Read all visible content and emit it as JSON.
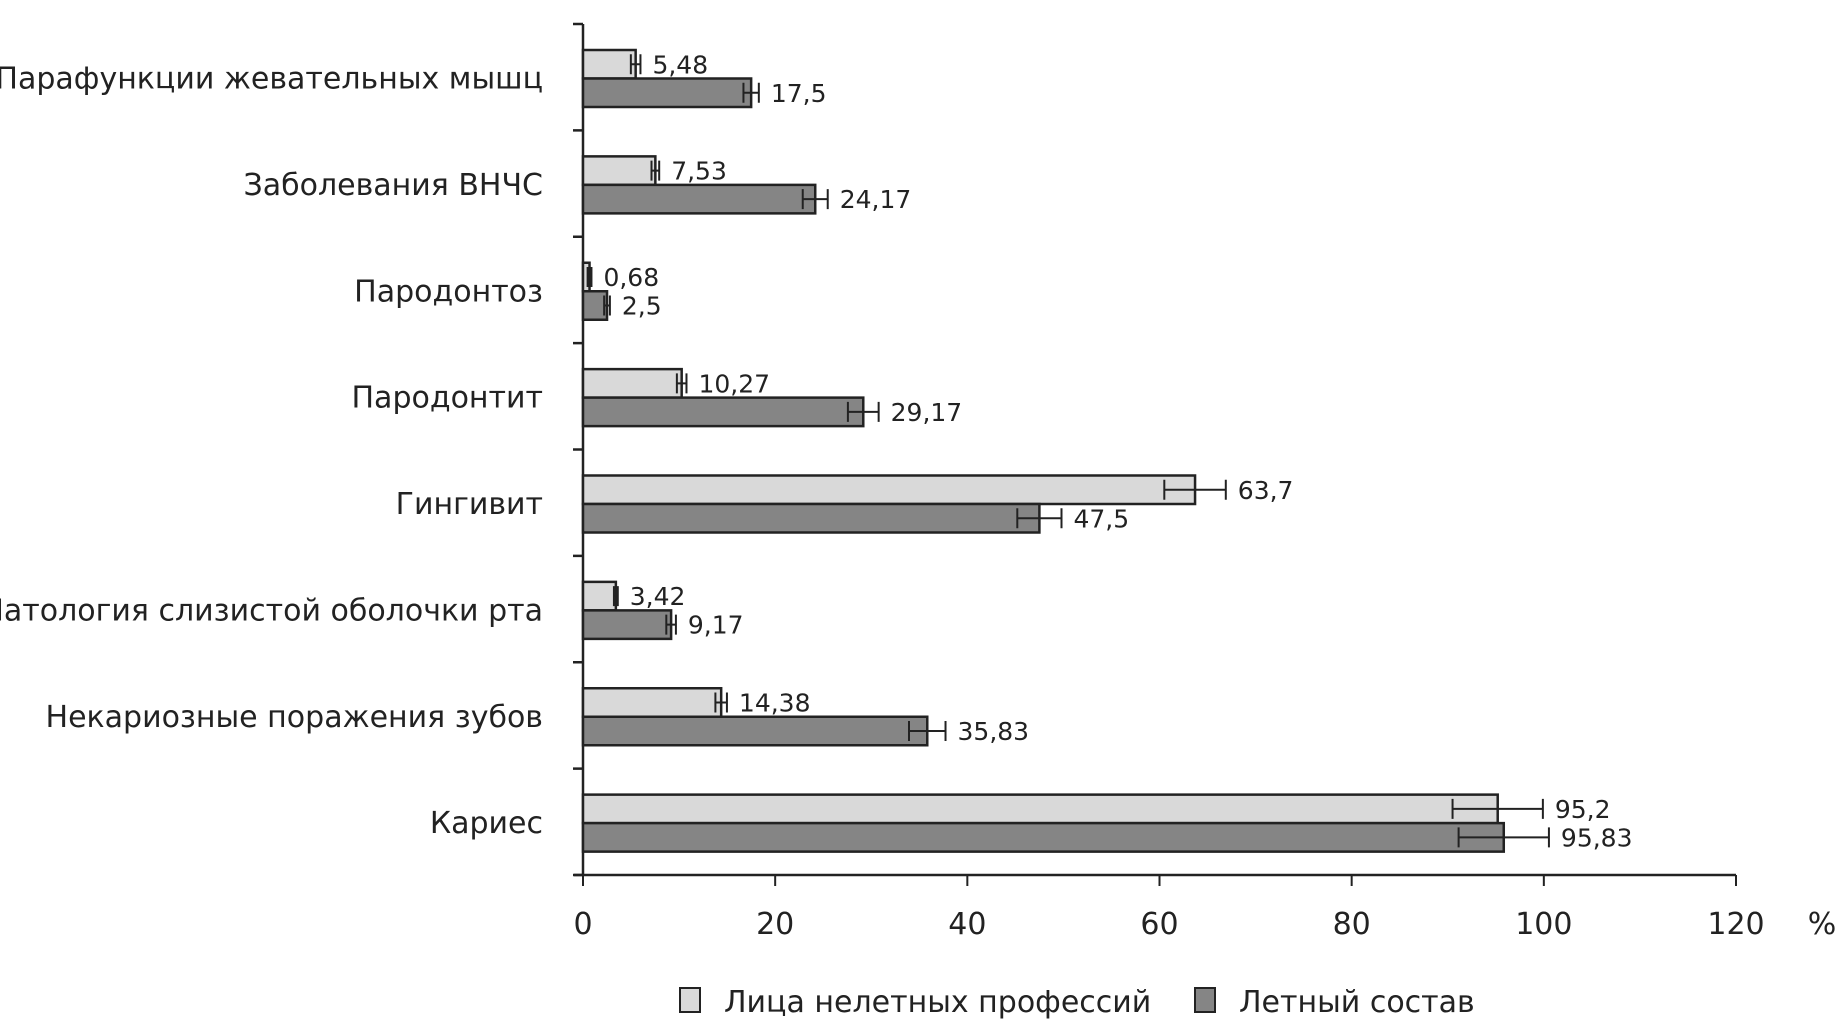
{
  "chart_data": {
    "type": "bar",
    "orientation": "horizontal",
    "title": "",
    "xlabel": "%",
    "ylabel": "",
    "xlim": [
      0,
      120
    ],
    "xticks": [
      0,
      20,
      40,
      60,
      80,
      100,
      120
    ],
    "grid": false,
    "legend_placement": "bottom",
    "categories": [
      "Парафункции жевательных мышц",
      "Заболевания ВНЧС",
      "Пародонтоз",
      "Пародонтит",
      "Гингивит",
      "Патология слизистой оболочки рта",
      "Некариозные поражения зубов",
      "Кариес"
    ],
    "series": [
      {
        "name": "Лица нелетных профессий",
        "color": "#d9d9d9",
        "values": [
          5.48,
          7.53,
          0.68,
          10.27,
          63.7,
          3.42,
          14.38,
          95.2
        ],
        "labels": [
          "5,48",
          "7,53",
          "0,68",
          "10,27",
          "63,7",
          "3,42",
          "14,38",
          "95,2"
        ],
        "errors": [
          0.5,
          0.4,
          0.2,
          0.5,
          3.2,
          0.2,
          0.6,
          4.7
        ]
      },
      {
        "name": "Летный состав",
        "color": "#858585",
        "values": [
          17.5,
          24.17,
          2.5,
          29.17,
          47.5,
          9.17,
          35.83,
          95.83
        ],
        "labels": [
          "17,5",
          "24,17",
          "2,5",
          "29,17",
          "47,5",
          "9,17",
          "35,83",
          "95,83"
        ],
        "errors": [
          0.8,
          1.3,
          0.3,
          1.6,
          2.3,
          0.5,
          1.9,
          4.7
        ]
      }
    ]
  }
}
